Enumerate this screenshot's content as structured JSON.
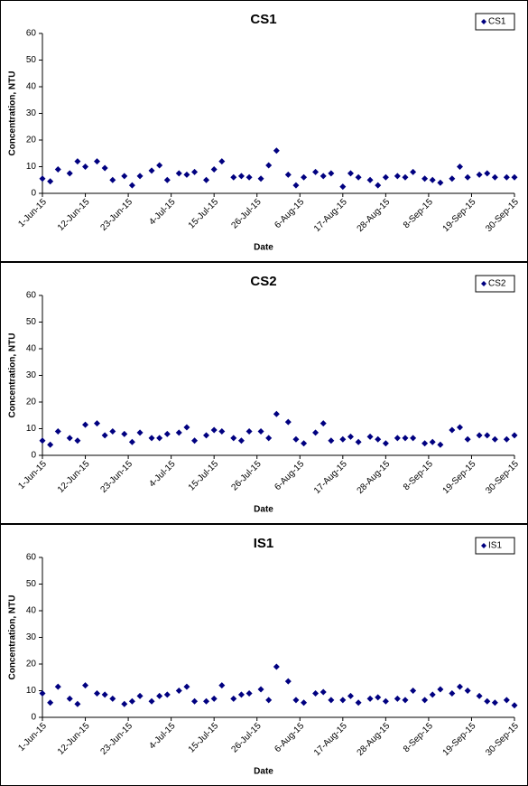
{
  "chart_data": [
    {
      "type": "scatter",
      "title": "CS1",
      "xlabel": "Date",
      "ylabel": "Concentration, NTU",
      "legend": "top-right",
      "x": [
        "2015-06-01",
        "2015-06-03",
        "2015-06-05",
        "2015-06-08",
        "2015-06-10",
        "2015-06-12",
        "2015-06-15",
        "2015-06-17",
        "2015-06-19",
        "2015-06-22",
        "2015-06-24",
        "2015-06-26",
        "2015-06-29",
        "2015-07-01",
        "2015-07-03",
        "2015-07-06",
        "2015-07-08",
        "2015-07-10",
        "2015-07-13",
        "2015-07-15",
        "2015-07-17",
        "2015-07-20",
        "2015-07-22",
        "2015-07-24",
        "2015-07-27",
        "2015-07-29",
        "2015-07-31",
        "2015-08-03",
        "2015-08-05",
        "2015-08-07",
        "2015-08-10",
        "2015-08-12",
        "2015-08-14",
        "2015-08-17",
        "2015-08-19",
        "2015-08-21",
        "2015-08-24",
        "2015-08-26",
        "2015-08-28",
        "2015-08-31",
        "2015-09-02",
        "2015-09-04",
        "2015-09-07",
        "2015-09-09",
        "2015-09-11",
        "2015-09-14",
        "2015-09-16",
        "2015-09-18",
        "2015-09-21",
        "2015-09-23",
        "2015-09-25",
        "2015-09-28",
        "2015-09-30"
      ],
      "series": [
        {
          "name": "CS1",
          "color": "#000080",
          "values": [
            5.5,
            4.5,
            9,
            7.5,
            12,
            10,
            12,
            9.5,
            5,
            6.5,
            3,
            6.5,
            8.5,
            10.5,
            5,
            7.5,
            7,
            8,
            5,
            9,
            12,
            6,
            6.5,
            6,
            5.5,
            10.5,
            16,
            7,
            3,
            6,
            8,
            6.5,
            7.5,
            2.5,
            7.5,
            6,
            5,
            3,
            6,
            6.5,
            6,
            8,
            5.5,
            5,
            4,
            5.5,
            10,
            6,
            7,
            7.5,
            6,
            6,
            6
          ]
        }
      ],
      "xlim": [
        "2015-06-01",
        "2015-09-30"
      ],
      "xticks": [
        {
          "value": "2015-06-01",
          "label": "1-Jun-15"
        },
        {
          "value": "2015-06-12",
          "label": "12-Jun-15"
        },
        {
          "value": "2015-06-23",
          "label": "23-Jun-15"
        },
        {
          "value": "2015-07-04",
          "label": "4-Jul-15"
        },
        {
          "value": "2015-07-15",
          "label": "15-Jul-15"
        },
        {
          "value": "2015-07-26",
          "label": "26-Jul-15"
        },
        {
          "value": "2015-08-06",
          "label": "6-Aug-15"
        },
        {
          "value": "2015-08-17",
          "label": "17-Aug-15"
        },
        {
          "value": "2015-08-28",
          "label": "28-Aug-15"
        },
        {
          "value": "2015-09-08",
          "label": "8-Sep-15"
        },
        {
          "value": "2015-09-19",
          "label": "19-Sep-15"
        },
        {
          "value": "2015-09-30",
          "label": "30-Sep-15"
        }
      ],
      "ylim": [
        0,
        60
      ],
      "yticks": [
        0,
        10,
        20,
        30,
        40,
        50,
        60
      ]
    },
    {
      "type": "scatter",
      "title": "CS2",
      "xlabel": "Date",
      "ylabel": "Concentration, NTU",
      "legend": "top-right",
      "x": [
        "2015-06-01",
        "2015-06-03",
        "2015-06-05",
        "2015-06-08",
        "2015-06-10",
        "2015-06-12",
        "2015-06-15",
        "2015-06-17",
        "2015-06-19",
        "2015-06-22",
        "2015-06-24",
        "2015-06-26",
        "2015-06-29",
        "2015-07-01",
        "2015-07-03",
        "2015-07-06",
        "2015-07-08",
        "2015-07-10",
        "2015-07-13",
        "2015-07-15",
        "2015-07-17",
        "2015-07-20",
        "2015-07-22",
        "2015-07-24",
        "2015-07-27",
        "2015-07-29",
        "2015-07-31",
        "2015-08-03",
        "2015-08-05",
        "2015-08-07",
        "2015-08-10",
        "2015-08-12",
        "2015-08-14",
        "2015-08-17",
        "2015-08-19",
        "2015-08-21",
        "2015-08-24",
        "2015-08-26",
        "2015-08-28",
        "2015-08-31",
        "2015-09-02",
        "2015-09-04",
        "2015-09-07",
        "2015-09-09",
        "2015-09-11",
        "2015-09-14",
        "2015-09-16",
        "2015-09-18",
        "2015-09-21",
        "2015-09-23",
        "2015-09-25",
        "2015-09-28",
        "2015-09-30"
      ],
      "series": [
        {
          "name": "CS2",
          "color": "#000080",
          "values": [
            5.5,
            4,
            9,
            6.5,
            5.5,
            11.5,
            12,
            7.5,
            9,
            8,
            5,
            8.5,
            6.5,
            6.5,
            8,
            8.5,
            10.5,
            5.5,
            7.5,
            9.5,
            9,
            6.5,
            5.5,
            9,
            9,
            6.5,
            15.5,
            12.5,
            6,
            4.5,
            8.5,
            12,
            5.5,
            6,
            7,
            5,
            7,
            6,
            4.5,
            6.5,
            6.5,
            6.5,
            4.5,
            5,
            4,
            9.5,
            10.5,
            6,
            7.5,
            7.5,
            6,
            6,
            7.5
          ]
        }
      ],
      "xlim": [
        "2015-06-01",
        "2015-09-30"
      ],
      "xticks": [
        {
          "value": "2015-06-01",
          "label": "1-Jun-15"
        },
        {
          "value": "2015-06-12",
          "label": "12-Jun-15"
        },
        {
          "value": "2015-06-23",
          "label": "23-Jun-15"
        },
        {
          "value": "2015-07-04",
          "label": "4-Jul-15"
        },
        {
          "value": "2015-07-15",
          "label": "15-Jul-15"
        },
        {
          "value": "2015-07-26",
          "label": "26-Jul-15"
        },
        {
          "value": "2015-08-06",
          "label": "6-Aug-15"
        },
        {
          "value": "2015-08-17",
          "label": "17-Aug-15"
        },
        {
          "value": "2015-08-28",
          "label": "28-Aug-15"
        },
        {
          "value": "2015-09-08",
          "label": "8-Sep-15"
        },
        {
          "value": "2015-09-19",
          "label": "19-Sep-15"
        },
        {
          "value": "2015-09-30",
          "label": "30-Sep-15"
        }
      ],
      "ylim": [
        0,
        60
      ],
      "yticks": [
        0,
        10,
        20,
        30,
        40,
        50,
        60
      ]
    },
    {
      "type": "scatter",
      "title": "IS1",
      "xlabel": "Date",
      "ylabel": "Concentration, NTU",
      "legend": "top-right",
      "x": [
        "2015-06-01",
        "2015-06-03",
        "2015-06-05",
        "2015-06-08",
        "2015-06-10",
        "2015-06-12",
        "2015-06-15",
        "2015-06-17",
        "2015-06-19",
        "2015-06-22",
        "2015-06-24",
        "2015-06-26",
        "2015-06-29",
        "2015-07-01",
        "2015-07-03",
        "2015-07-06",
        "2015-07-08",
        "2015-07-10",
        "2015-07-13",
        "2015-07-15",
        "2015-07-17",
        "2015-07-20",
        "2015-07-22",
        "2015-07-24",
        "2015-07-27",
        "2015-07-29",
        "2015-07-31",
        "2015-08-03",
        "2015-08-05",
        "2015-08-07",
        "2015-08-10",
        "2015-08-12",
        "2015-08-14",
        "2015-08-17",
        "2015-08-19",
        "2015-08-21",
        "2015-08-24",
        "2015-08-26",
        "2015-08-28",
        "2015-08-31",
        "2015-09-02",
        "2015-09-04",
        "2015-09-07",
        "2015-09-09",
        "2015-09-11",
        "2015-09-14",
        "2015-09-16",
        "2015-09-18",
        "2015-09-21",
        "2015-09-23",
        "2015-09-25",
        "2015-09-28",
        "2015-09-30"
      ],
      "series": [
        {
          "name": "IS1",
          "color": "#000080",
          "values": [
            9,
            5.5,
            11.5,
            7,
            5,
            12,
            9,
            8.5,
            7,
            5,
            6,
            8,
            6,
            8,
            8.5,
            10,
            11.5,
            6,
            6,
            7,
            12,
            7,
            8.5,
            9,
            10.5,
            6.5,
            19,
            13.5,
            6.5,
            5.5,
            9,
            9.5,
            6.5,
            6.5,
            8,
            5.5,
            7,
            7.5,
            6,
            7,
            6.5,
            10,
            6.5,
            8.5,
            10.5,
            9,
            11.5,
            10,
            8,
            6,
            5.5,
            6.5,
            4.5
          ]
        }
      ],
      "xlim": [
        "2015-06-01",
        "2015-09-30"
      ],
      "xticks": [
        {
          "value": "2015-06-01",
          "label": "1-Jun-15"
        },
        {
          "value": "2015-06-12",
          "label": "12-Jun-15"
        },
        {
          "value": "2015-06-23",
          "label": "23-Jun-15"
        },
        {
          "value": "2015-07-04",
          "label": "4-Jul-15"
        },
        {
          "value": "2015-07-15",
          "label": "15-Jul-15"
        },
        {
          "value": "2015-07-26",
          "label": "26-Jul-15"
        },
        {
          "value": "2015-08-06",
          "label": "6-Aug-15"
        },
        {
          "value": "2015-08-17",
          "label": "17-Aug-15"
        },
        {
          "value": "2015-08-28",
          "label": "28-Aug-15"
        },
        {
          "value": "2015-09-08",
          "label": "8-Sep-15"
        },
        {
          "value": "2015-09-19",
          "label": "19-Sep-15"
        },
        {
          "value": "2015-09-30",
          "label": "30-Sep-15"
        }
      ],
      "ylim": [
        0,
        60
      ],
      "yticks": [
        0,
        10,
        20,
        30,
        40,
        50,
        60
      ]
    }
  ]
}
